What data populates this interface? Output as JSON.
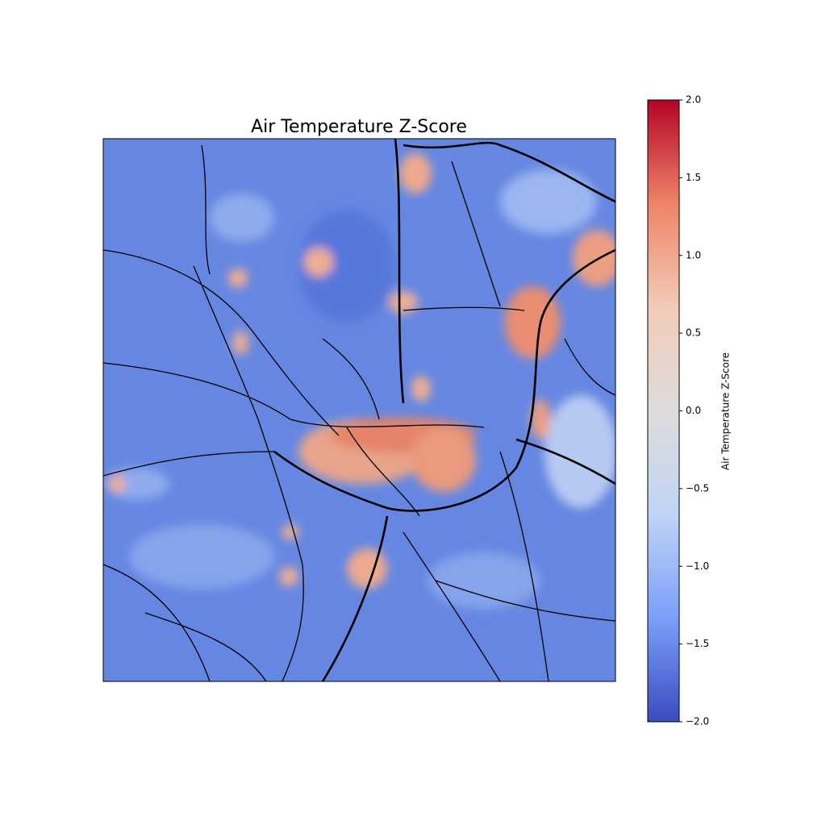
{
  "chart_data": {
    "type": "heatmap",
    "title": "Air Temperature Z-Score",
    "colorbar": {
      "label": "Air Temperature Z-Score",
      "lim": [
        -2.0,
        2.0
      ],
      "colors": [
        "#3b4cc0",
        "#7b9ff9",
        "#c0d4f5",
        "#dddcdc",
        "#f2cbb7",
        "#ee8468",
        "#b40426"
      ],
      "ticks": [
        {
          "value": 2.0,
          "label": "2.0"
        },
        {
          "value": 1.5,
          "label": "1.5"
        },
        {
          "value": 1.0,
          "label": "1.0"
        },
        {
          "value": 0.5,
          "label": "0.5"
        },
        {
          "value": 0.0,
          "label": "0.0"
        },
        {
          "value": -0.5,
          "label": "−0.5"
        },
        {
          "value": -1.0,
          "label": "−1.0"
        },
        {
          "value": -1.5,
          "label": "−1.5"
        },
        {
          "value": -2.0,
          "label": "−2.0"
        }
      ]
    }
  }
}
